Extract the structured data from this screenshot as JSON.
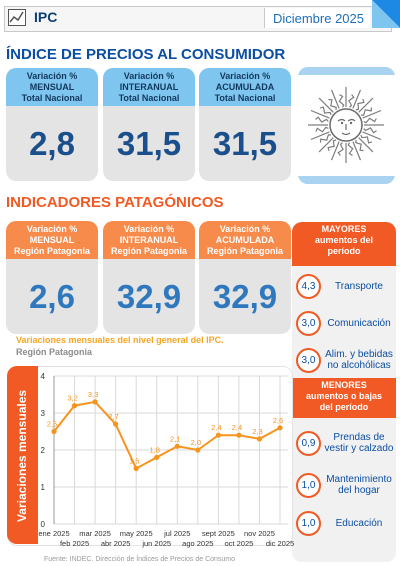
{
  "header": {
    "title": "IPC",
    "date": "Diciembre  2025"
  },
  "national": {
    "title": "ÍNDICE DE PRECIOS AL CONSUMIDOR",
    "cards": [
      {
        "label": "Variación %\nMENSUAL\nTotal Nacional",
        "value": "2,8"
      },
      {
        "label": "Variación %\nINTERANUAL\nTotal Nacional",
        "value": "31,5"
      },
      {
        "label": "Variación %\nACUMULADA\nTotal Nacional",
        "value": "31,5"
      }
    ]
  },
  "patagonia": {
    "title": "INDICADORES PATAGÓNICOS",
    "cards": [
      {
        "label": "Variación %\nMENSUAL\nRegión Patagonia",
        "value": "2,6"
      },
      {
        "label": "Variación %\nINTERANUAL\nRegión Patagonia",
        "value": "32,9"
      },
      {
        "label": "Variación %\nACUMULADA\nRegión Patagonia",
        "value": "32,9"
      }
    ]
  },
  "ranking": {
    "mayores_title": "MAYORES\naumentos del\nperíodo",
    "mayores": [
      {
        "value": "4,3",
        "label": "Transporte"
      },
      {
        "value": "3,0",
        "label": "Comunicación"
      },
      {
        "value": "3,0",
        "label": "Alim. y bebidas no alcohólicas"
      }
    ],
    "menores_title": "MENORES\naumentos o bajas\ndel período",
    "menores": [
      {
        "value": "0,9",
        "label": "Prendas de vestir y calzado"
      },
      {
        "value": "1,0",
        "label": "Mantenimiento del hogar"
      },
      {
        "value": "1,0",
        "label": "Educación"
      }
    ]
  },
  "source": "Fuente: INDEC. Dirección de Índices de Precios de Consumo",
  "colors": {
    "blue": "#0b4ea2",
    "orange": "#f15a24",
    "line": "#f7941d",
    "sky": "#7ec6ef"
  },
  "chart_data": {
    "type": "line",
    "title": "Variaciones mensuales del nivel general del IPC.",
    "subtitle": "Región Patagonia",
    "ylabel": "Variaciones mensuales",
    "xlabel": "",
    "categories": [
      "ene 2025",
      "feb 2025",
      "mar 2025",
      "abr 2025",
      "may 2025",
      "jun 2025",
      "jul 2025",
      "ago 2025",
      "sept 2025",
      "oct 2025",
      "nov 2025",
      "dic 2025"
    ],
    "values": [
      2.5,
      3.2,
      3.3,
      2.7,
      1.5,
      1.8,
      2.1,
      2.0,
      2.4,
      2.4,
      2.3,
      2.6
    ],
    "value_labels": [
      "2,5",
      "3,2",
      "3,3",
      "2,7",
      "1,5",
      "1,8",
      "2,1",
      "2,0",
      "2,4",
      "2,4",
      "2,3",
      "2,6"
    ],
    "ylim": [
      0,
      4
    ],
    "yticks": [
      "0",
      "1",
      "2",
      "3",
      "4"
    ],
    "grid": true
  }
}
